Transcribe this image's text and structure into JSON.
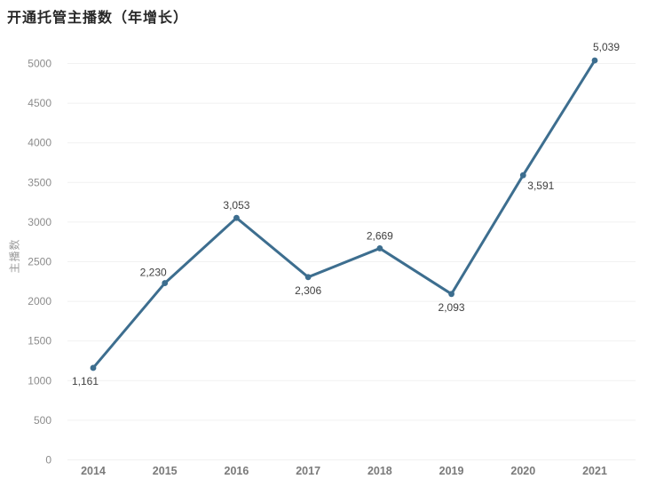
{
  "title": "开通托管主播数（年增长）",
  "colors": {
    "background": "#ffffff",
    "line": "#3d6e8f",
    "marker": "#3d6e8f",
    "grid": "#f1f1f1",
    "tick_text": "#8c8c8c",
    "x_tick_text": "#7a7a7a",
    "axis_title_text": "#9a9a9a",
    "data_label_text": "#404040",
    "title_text": "#272727"
  },
  "chart_data": {
    "type": "line",
    "title": "开通托管主播数（年增长）",
    "xlabel": "",
    "ylabel": "主播数",
    "categories": [
      "2014",
      "2015",
      "2016",
      "2017",
      "2018",
      "2019",
      "2020",
      "2021"
    ],
    "values": [
      1161,
      2230,
      3053,
      2306,
      2669,
      2093,
      3591,
      5039
    ],
    "data_labels": [
      "1,161",
      "2,230",
      "3,053",
      "2,306",
      "2,669",
      "2,093",
      "3,591",
      "5,039"
    ],
    "label_positions": [
      "below-left",
      "above-left",
      "above",
      "below",
      "above",
      "below",
      "right-below",
      "above-right"
    ],
    "ylim": [
      0,
      5000
    ],
    "ytick_interval": 500,
    "yticks": [
      "0",
      "500",
      "1000",
      "1500",
      "2000",
      "2500",
      "3000",
      "3500",
      "4000",
      "4500",
      "5000"
    ],
    "grid": "horizontal-faint",
    "legend": "none",
    "marker": "circle"
  }
}
